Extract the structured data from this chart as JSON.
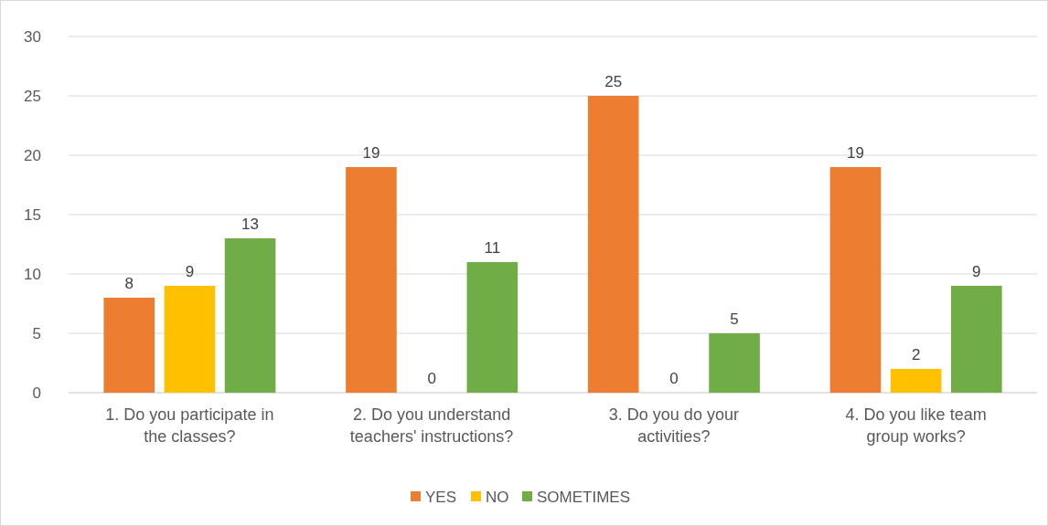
{
  "chart_data": {
    "type": "bar",
    "categories": [
      "1. Do you participate in the classes?",
      "2. Do you understand teachers' instructions?",
      "3. Do you do your activities?",
      "4. Do you like team group works?"
    ],
    "series": [
      {
        "name": "YES",
        "color": "#ed7d31",
        "values": [
          8,
          19,
          25,
          19
        ]
      },
      {
        "name": "NO",
        "color": "#ffc000",
        "values": [
          9,
          0,
          0,
          2
        ]
      },
      {
        "name": "SOMETIMES",
        "color": "#70ad47",
        "values": [
          13,
          11,
          5,
          9
        ]
      }
    ],
    "ylim": [
      0,
      30
    ],
    "yticks": [
      0,
      5,
      10,
      15,
      20,
      25,
      30
    ],
    "grid": "y",
    "legend": "bottom",
    "data_labels": true
  }
}
